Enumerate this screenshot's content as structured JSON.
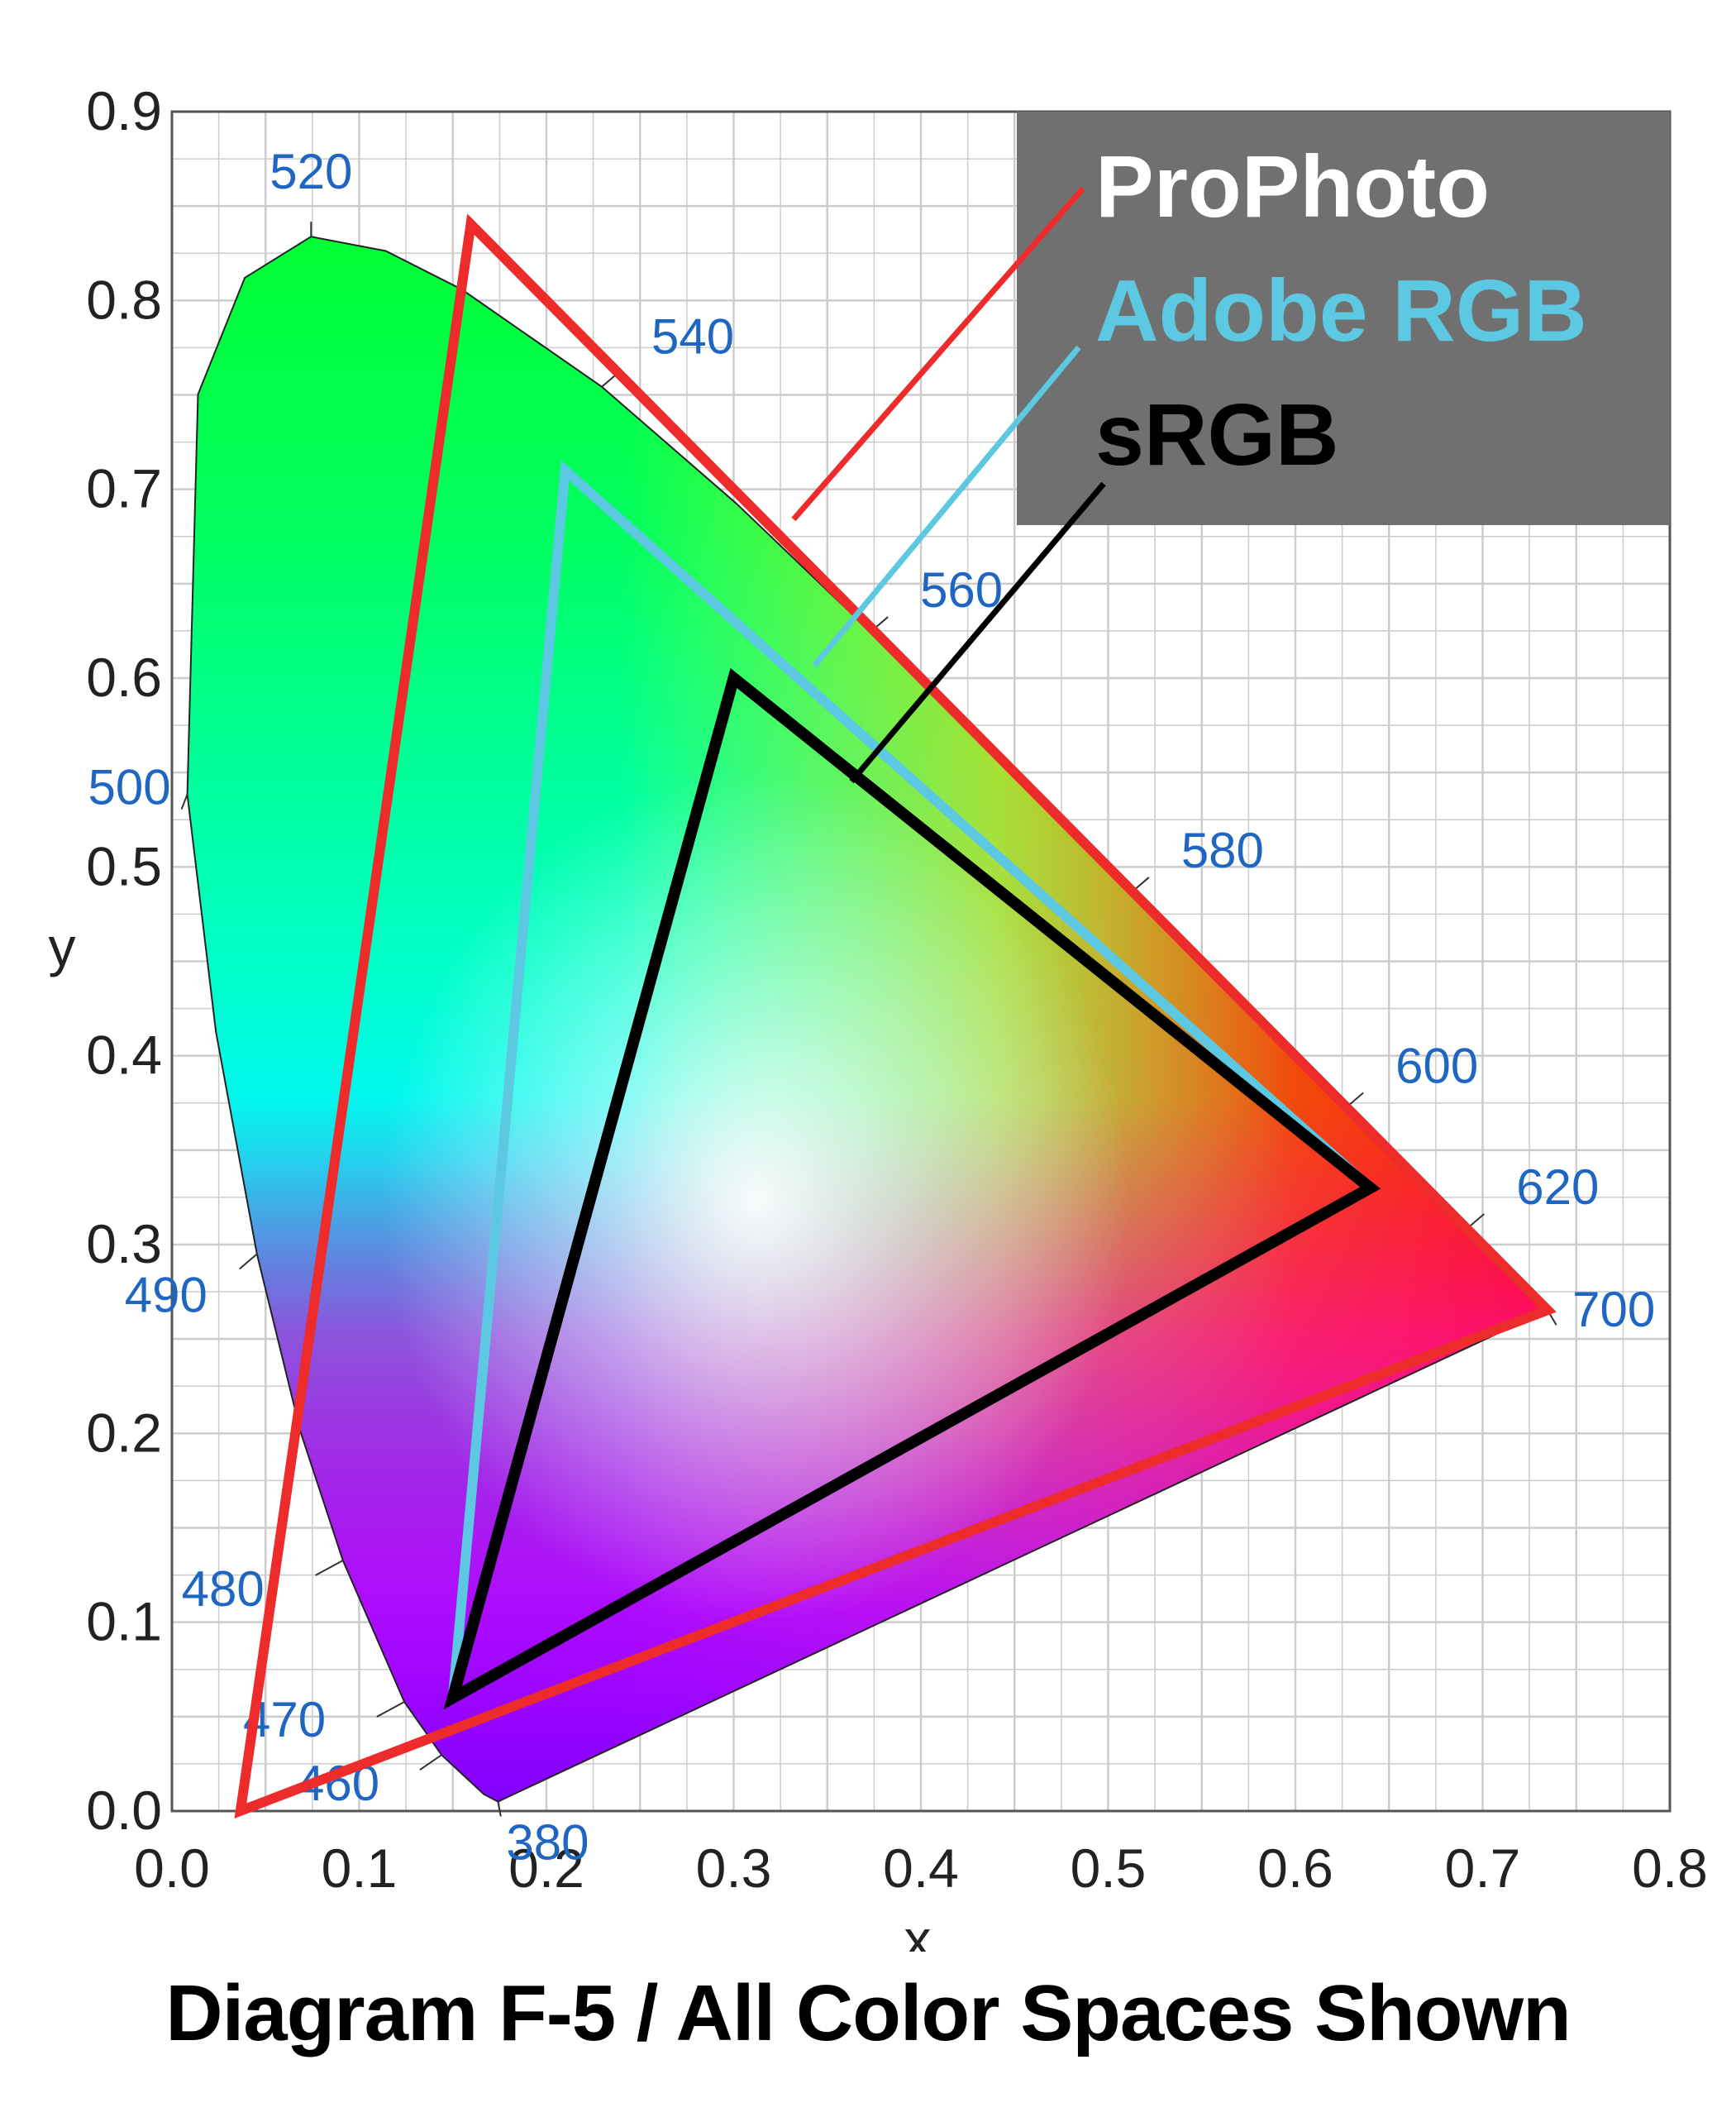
{
  "chart_data": {
    "type": "scatter",
    "title": "",
    "xlabel": "x",
    "ylabel": "y",
    "xlim": [
      0,
      0.8
    ],
    "ylim": [
      0,
      0.9
    ],
    "x_ticks": [
      "0.0",
      "0.1",
      "0.2",
      "0.3",
      "0.4",
      "0.5",
      "0.6",
      "0.7",
      "0.8"
    ],
    "y_ticks": [
      "0.0",
      "0.1",
      "0.2",
      "0.3",
      "0.4",
      "0.5",
      "0.6",
      "0.7",
      "0.8",
      "0.9"
    ],
    "grid": true,
    "spectral_locus": [
      [
        0.1741,
        0.005
      ],
      [
        0.1666,
        0.0089
      ],
      [
        0.144,
        0.0297
      ],
      [
        0.1241,
        0.0578
      ],
      [
        0.0913,
        0.1327
      ],
      [
        0.0687,
        0.2007
      ],
      [
        0.0454,
        0.295
      ],
      [
        0.0235,
        0.4127
      ],
      [
        0.0082,
        0.5384
      ],
      [
        0.0139,
        0.7502
      ],
      [
        0.0389,
        0.812
      ],
      [
        0.0743,
        0.8338
      ],
      [
        0.1142,
        0.8262
      ],
      [
        0.1547,
        0.8059
      ],
      [
        0.2296,
        0.7543
      ],
      [
        0.3016,
        0.6923
      ],
      [
        0.3731,
        0.6245
      ],
      [
        0.4441,
        0.5547
      ],
      [
        0.5125,
        0.4866
      ],
      [
        0.5752,
        0.4242
      ],
      [
        0.627,
        0.3725
      ],
      [
        0.6658,
        0.334
      ],
      [
        0.6915,
        0.3083
      ],
      [
        0.7079,
        0.292
      ],
      [
        0.7347,
        0.2653
      ]
    ],
    "wavelength_labels": [
      {
        "nm": "380",
        "x": 0.1741,
        "y": 0.005
      },
      {
        "nm": "460",
        "x": 0.144,
        "y": 0.0297
      },
      {
        "nm": "470",
        "x": 0.1241,
        "y": 0.0578
      },
      {
        "nm": "480",
        "x": 0.0913,
        "y": 0.1327
      },
      {
        "nm": "490",
        "x": 0.0454,
        "y": 0.295
      },
      {
        "nm": "500",
        "x": 0.0082,
        "y": 0.5384
      },
      {
        "nm": "520",
        "x": 0.0743,
        "y": 0.8338
      },
      {
        "nm": "540",
        "x": 0.2296,
        "y": 0.7543
      },
      {
        "nm": "560",
        "x": 0.3731,
        "y": 0.6245
      },
      {
        "nm": "580",
        "x": 0.5125,
        "y": 0.4866
      },
      {
        "nm": "600",
        "x": 0.627,
        "y": 0.3725
      },
      {
        "nm": "620",
        "x": 0.6915,
        "y": 0.3083
      },
      {
        "nm": "700",
        "x": 0.7347,
        "y": 0.2653
      }
    ],
    "series": [
      {
        "name": "ProPhoto",
        "color": "#ee2b2b",
        "points": [
          [
            0.7347,
            0.2653
          ],
          [
            0.1596,
            0.8404
          ],
          [
            0.0366,
            0.0001
          ]
        ]
      },
      {
        "name": "Adobe RGB",
        "color": "#5cc8e2",
        "points": [
          [
            0.64,
            0.33
          ],
          [
            0.21,
            0.71
          ],
          [
            0.15,
            0.06
          ]
        ]
      },
      {
        "name": "sRGB",
        "color": "#000000",
        "points": [
          [
            0.64,
            0.33
          ],
          [
            0.3,
            0.6
          ],
          [
            0.15,
            0.06
          ]
        ]
      }
    ],
    "legend_position": "top-right"
  },
  "caption": "Diagram F-5 / All Color Spaces Shown",
  "colors": {
    "wavelength_label": "#1f66c2",
    "legend_background": "#707070",
    "grid": "#cccccc"
  }
}
